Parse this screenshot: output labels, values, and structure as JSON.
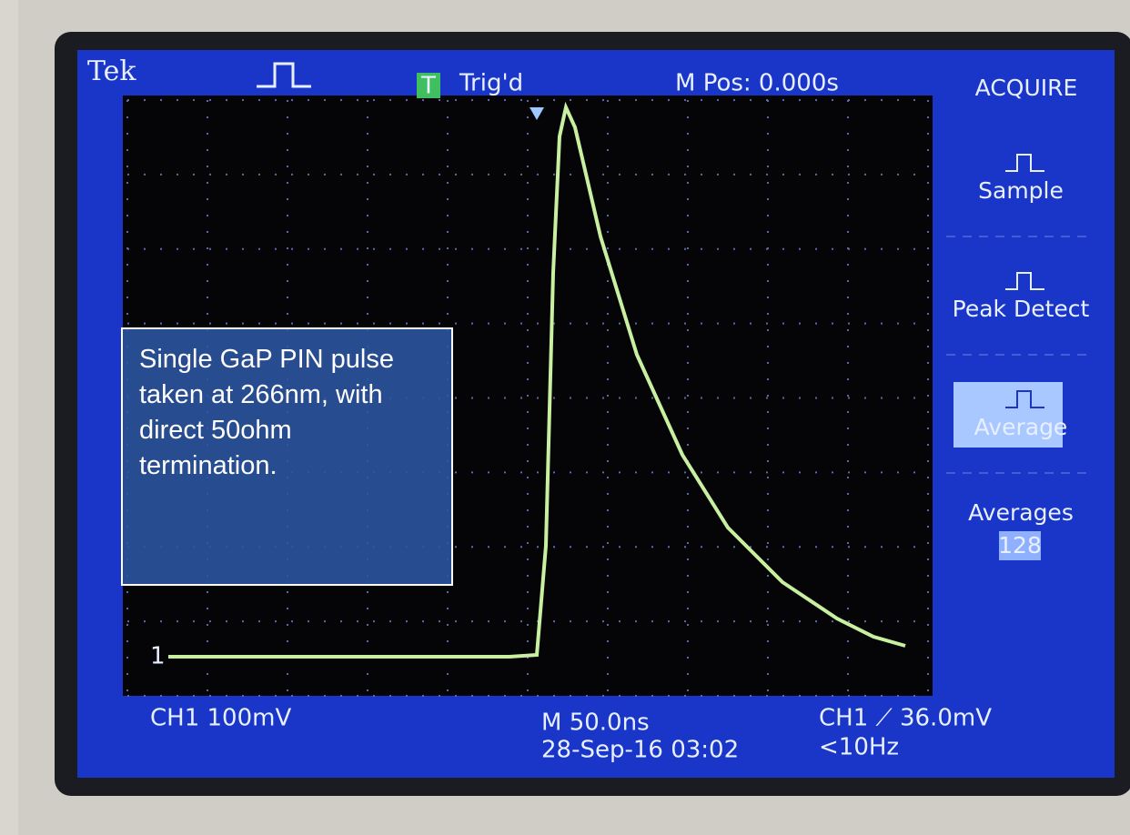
{
  "header": {
    "brand": "Tek",
    "trigger_icon": "T",
    "trigger_status": "Trig'd",
    "m_pos": "M Pos: 0.000s"
  },
  "menu": {
    "title": "ACQUIRE",
    "items": [
      {
        "label": "Sample"
      },
      {
        "label": "Peak Detect"
      },
      {
        "label": "Average",
        "selected": true
      },
      {
        "label": "Averages",
        "value": "128"
      }
    ]
  },
  "footer": {
    "ch1_scale": "CH1  100mV",
    "timebase": "M 50.0ns",
    "datetime": "28-Sep-16 03:02",
    "trigger": "CH1 ⟋ 36.0mV",
    "frequency": "<10Hz"
  },
  "annotation": "Single GaP PIN pulse taken at 266nm, with direct 50ohm termination."
}
